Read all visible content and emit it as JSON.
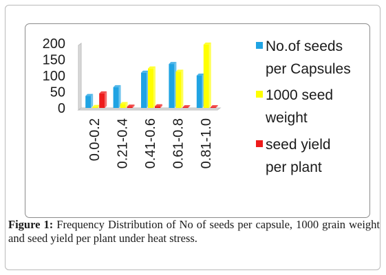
{
  "caption": {
    "label": "Figure 1:",
    "text": "Frequency Distribution of No of seeds per capsule, 1000 grain weight and seed yield per plant under heat stress."
  },
  "chart_data": {
    "type": "bar",
    "categories": [
      "0.0-0.2",
      "0.21-0.4",
      "0.41-0.6",
      "0.61-0.8",
      "0.81-1.0"
    ],
    "series": [
      {
        "name_lines": [
          "No.of seeds",
          "per Capsules"
        ],
        "color": "#1fa3e3",
        "values": [
          37,
          64,
          109,
          136,
          100
        ]
      },
      {
        "name_lines": [
          "1000 seed",
          "weight"
        ],
        "color": "#ffff00",
        "values": [
          3,
          12,
          122,
          112,
          196
        ]
      },
      {
        "name_lines": [
          "seed yield",
          "per plant"
        ],
        "color": "#ee1b1b",
        "values": [
          45,
          4,
          5,
          2,
          2
        ]
      }
    ],
    "y_ticks": [
      0,
      50,
      100,
      150,
      200
    ],
    "ylim": [
      0,
      200
    ],
    "legend_position": "right",
    "grid": false
  }
}
